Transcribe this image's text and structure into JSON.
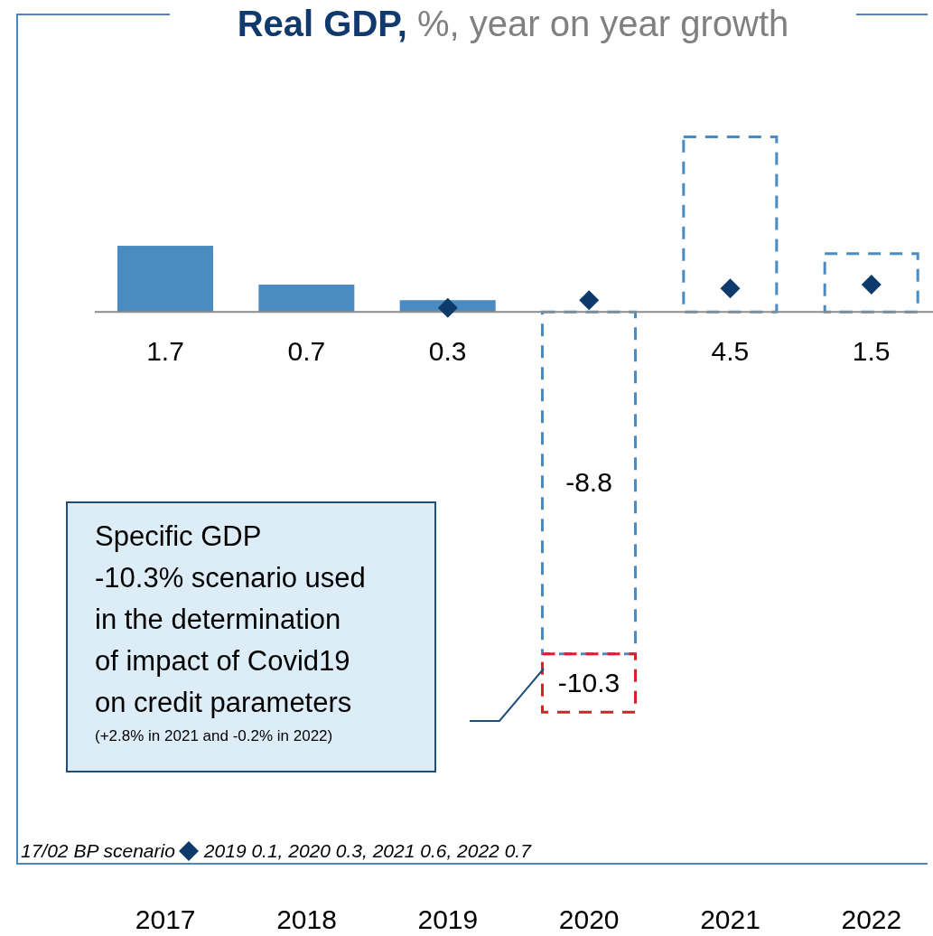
{
  "chart_data": {
    "type": "bar",
    "title": "Real GDP,",
    "subtitle": "%, year on year growth",
    "categories": [
      "2017",
      "2018",
      "2019",
      "2020",
      "2021",
      "2022"
    ],
    "series": [
      {
        "color": "#4a8bc2",
        "values": [
          1.7,
          0.7,
          0.3,
          null,
          null,
          null
        ],
        "value_labels": [
          "1.7",
          "0.7",
          "0.3",
          null,
          null,
          null
        ]
      },
      {
        "color": "#4a8bc2",
        "line_style": "dashed",
        "values": [
          null,
          null,
          null,
          -8.8,
          4.5,
          1.5
        ],
        "value_labels": [
          null,
          null,
          null,
          "-8.8",
          "4.5",
          "1.5"
        ]
      },
      {
        "color": "#d9202a",
        "line_style": "dashed",
        "values": [
          null,
          null,
          null,
          -1.5,
          null,
          null
        ]
      },
      {
        "type": "scatter",
        "name": "17/02 BP scenario",
        "color": "#0d3a6b",
        "marker": "diamond",
        "values": [
          null,
          null,
          0.1,
          0.3,
          0.6,
          0.7
        ]
      }
    ],
    "stacked": true,
    "totals": [
      null,
      null,
      null,
      "-10.3",
      null,
      null
    ],
    "legend": "bottom left",
    "annotations": [
      "Specific GDP",
      "-10.3% scenario used",
      "in the determination",
      "of impact of Covid19",
      "on credit parameters",
      "(+2.8% in 2021 and -0.2% in 2022)",
      "2019 0.1, 2020 0.3, 2021 0.6, 2022 0.7"
    ]
  }
}
